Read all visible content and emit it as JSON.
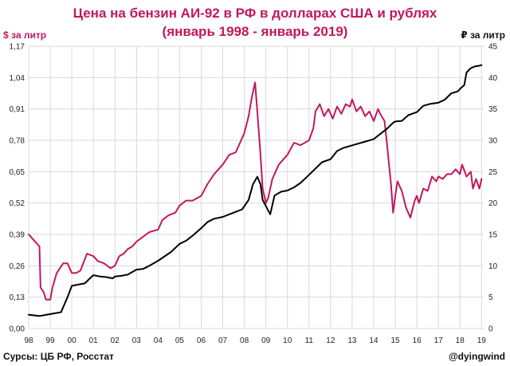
{
  "chart_data": {
    "type": "line",
    "title": "Цена на бензин АИ-92 в РФ в долларах США и рублях",
    "subtitle": "(январь 1998 - январь 2019)",
    "y_left_label": "$ за литр",
    "y_right_label": "₽ за литр",
    "x_tick_labels": [
      "98",
      "99",
      "00",
      "01",
      "02",
      "03",
      "04",
      "05",
      "06",
      "07",
      "08",
      "09",
      "10",
      "11",
      "12",
      "13",
      "14",
      "15",
      "16",
      "17",
      "18",
      "19"
    ],
    "x_ticks": [
      1998,
      1999,
      2000,
      2001,
      2002,
      2003,
      2004,
      2005,
      2006,
      2007,
      2008,
      2009,
      2010,
      2011,
      2012,
      2013,
      2014,
      2015,
      2016,
      2017,
      2018,
      2019
    ],
    "xlim": [
      1998.0,
      2019.1
    ],
    "y_left_ticks": [
      "0,00",
      "0,13",
      "0,26",
      "0,39",
      "0,52",
      "0,65",
      "0,78",
      "0,91",
      "1,04",
      "1,17"
    ],
    "y_left_lim": [
      0,
      1.17
    ],
    "y_right_ticks": [
      "0",
      "5",
      "10",
      "15",
      "20",
      "25",
      "30",
      "35",
      "40",
      "45"
    ],
    "y_right_lim": [
      0,
      45
    ],
    "grid": true,
    "colors": {
      "usd": "#c2185b",
      "rub": "#000000",
      "title": "#c2185b"
    },
    "series": [
      {
        "key": "usd",
        "axis": "left",
        "x": [
          1998.0,
          1998.2,
          1998.5,
          1998.55,
          1998.7,
          1998.8,
          1999.0,
          1999.1,
          1999.3,
          1999.6,
          1999.8,
          2000.0,
          2000.2,
          2000.4,
          2000.7,
          2001.0,
          2001.2,
          2001.5,
          2001.8,
          2002.0,
          2002.2,
          2002.4,
          2002.6,
          2002.8,
          2003.0,
          2003.3,
          2003.6,
          2004.0,
          2004.2,
          2004.5,
          2004.8,
          2005.0,
          2005.3,
          2005.6,
          2006.0,
          2006.3,
          2006.6,
          2007.0,
          2007.3,
          2007.6,
          2007.8,
          2008.0,
          2008.2,
          2008.35,
          2008.5,
          2008.6,
          2008.75,
          2008.85,
          2009.0,
          2009.1,
          2009.3,
          2009.6,
          2010.0,
          2010.3,
          2010.6,
          2011.0,
          2011.2,
          2011.3,
          2011.5,
          2011.7,
          2011.9,
          2012.1,
          2012.3,
          2012.5,
          2012.7,
          2012.9,
          2013.0,
          2013.2,
          2013.4,
          2013.6,
          2013.8,
          2014.0,
          2014.2,
          2014.3,
          2014.5,
          2014.6,
          2014.8,
          2014.9,
          2015.0,
          2015.1,
          2015.3,
          2015.5,
          2015.7,
          2015.9,
          2016.0,
          2016.1,
          2016.3,
          2016.5,
          2016.7,
          2016.9,
          2017.0,
          2017.2,
          2017.4,
          2017.6,
          2017.8,
          2018.0,
          2018.1,
          2018.3,
          2018.5,
          2018.6,
          2018.75,
          2018.9,
          2019.0
        ],
        "values": [
          0.39,
          0.37,
          0.34,
          0.17,
          0.15,
          0.12,
          0.12,
          0.17,
          0.23,
          0.27,
          0.27,
          0.23,
          0.23,
          0.24,
          0.31,
          0.3,
          0.28,
          0.27,
          0.25,
          0.26,
          0.3,
          0.31,
          0.33,
          0.34,
          0.36,
          0.38,
          0.4,
          0.41,
          0.45,
          0.47,
          0.48,
          0.51,
          0.53,
          0.53,
          0.55,
          0.6,
          0.64,
          0.68,
          0.72,
          0.73,
          0.77,
          0.81,
          0.88,
          0.96,
          1.02,
          0.9,
          0.72,
          0.58,
          0.52,
          0.54,
          0.62,
          0.68,
          0.72,
          0.77,
          0.76,
          0.78,
          0.83,
          0.9,
          0.93,
          0.88,
          0.91,
          0.87,
          0.92,
          0.89,
          0.93,
          0.92,
          0.95,
          0.9,
          0.92,
          0.88,
          0.9,
          0.86,
          0.91,
          0.89,
          0.86,
          0.78,
          0.6,
          0.48,
          0.55,
          0.61,
          0.57,
          0.5,
          0.46,
          0.53,
          0.55,
          0.52,
          0.58,
          0.57,
          0.63,
          0.61,
          0.63,
          0.62,
          0.64,
          0.64,
          0.66,
          0.64,
          0.68,
          0.63,
          0.65,
          0.58,
          0.62,
          0.58,
          0.62
        ]
      },
      {
        "key": "rub",
        "axis": "right",
        "x": [
          1998.0,
          1998.5,
          1999.0,
          1999.5,
          1999.8,
          2000.0,
          2000.3,
          2000.6,
          2000.9,
          2001.0,
          2001.3,
          2001.6,
          2001.9,
          2002.0,
          2002.3,
          2002.6,
          2003.0,
          2003.3,
          2003.6,
          2004.0,
          2004.3,
          2004.6,
          2005.0,
          2005.3,
          2005.6,
          2006.0,
          2006.3,
          2006.6,
          2007.0,
          2007.3,
          2007.6,
          2007.9,
          2008.2,
          2008.4,
          2008.6,
          2008.75,
          2008.85,
          2009.0,
          2009.2,
          2009.4,
          2009.7,
          2010.0,
          2010.3,
          2010.6,
          2011.0,
          2011.3,
          2011.6,
          2012.0,
          2012.3,
          2012.6,
          2013.0,
          2013.3,
          2013.6,
          2014.0,
          2014.3,
          2014.6,
          2014.9,
          2015.0,
          2015.3,
          2015.6,
          2016.0,
          2016.3,
          2016.6,
          2017.0,
          2017.3,
          2017.6,
          2017.9,
          2018.0,
          2018.2,
          2018.3,
          2018.5,
          2018.7,
          2018.9,
          2019.0
        ],
        "values": [
          2.2,
          2.0,
          2.3,
          2.6,
          5.0,
          6.8,
          7.0,
          7.2,
          8.2,
          8.5,
          8.3,
          8.2,
          8.0,
          8.3,
          8.4,
          8.6,
          9.4,
          9.5,
          10.0,
          10.8,
          11.5,
          12.2,
          13.5,
          14.0,
          14.8,
          16.0,
          17.0,
          17.5,
          17.8,
          18.2,
          18.6,
          19.0,
          20.5,
          23.0,
          24.2,
          23.0,
          20.5,
          19.5,
          18.2,
          21.2,
          21.8,
          22.0,
          22.5,
          23.2,
          24.5,
          25.5,
          26.5,
          27.0,
          28.3,
          28.8,
          29.2,
          29.5,
          29.8,
          30.2,
          31.0,
          31.8,
          32.8,
          33.0,
          33.1,
          34.0,
          34.5,
          35.5,
          35.8,
          36.0,
          36.5,
          37.5,
          37.8,
          38.2,
          38.8,
          40.8,
          41.5,
          41.8,
          41.9,
          42.0
        ]
      }
    ]
  },
  "footer": {
    "source": "Сурсы: ЦБ РФ, Росстат",
    "credit": "@dyingwind"
  }
}
